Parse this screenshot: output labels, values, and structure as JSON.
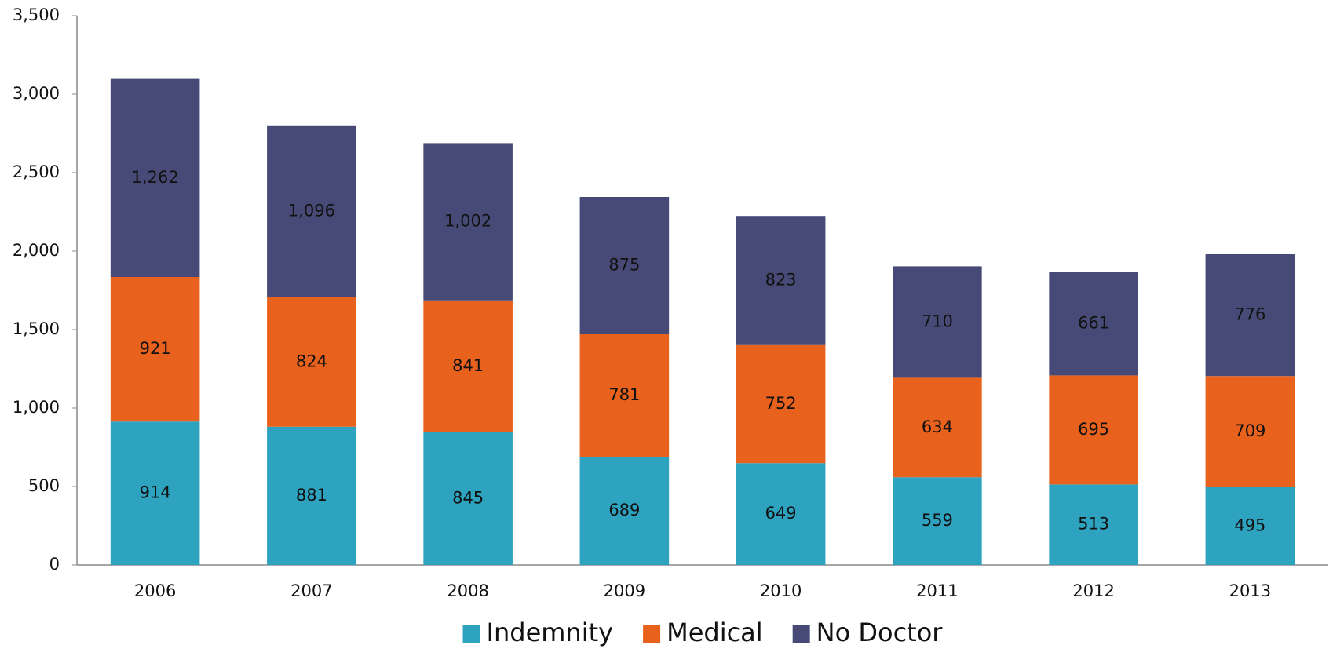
{
  "chart_data": {
    "type": "stacked_bar",
    "categories": [
      "2006",
      "2007",
      "2008",
      "2009",
      "2010",
      "2011",
      "2012",
      "2013"
    ],
    "series": [
      {
        "name": "Indemnity",
        "color": "#2ea3bf",
        "values": [
          914,
          881,
          845,
          689,
          649,
          559,
          513,
          495
        ]
      },
      {
        "name": "Medical",
        "color": "#e8621e",
        "values": [
          921,
          824,
          841,
          781,
          752,
          634,
          695,
          709
        ]
      },
      {
        "name": "No Doctor",
        "color": "#474a76",
        "values": [
          1262,
          1096,
          1002,
          875,
          823,
          710,
          661,
          776
        ],
        "value_labels": [
          "1,262",
          "1,096",
          "1,002",
          "875",
          "823",
          "710",
          "661",
          "776"
        ]
      }
    ],
    "ylim": [
      0,
      3500
    ],
    "yticks": [
      0,
      500,
      {
        "value": 1000,
        "label": "1,000"
      },
      {
        "value": 1500,
        "label": "1,500"
      },
      {
        "value": 2000,
        "label": "2,000"
      },
      {
        "value": 2500,
        "label": "2,500"
      },
      {
        "value": 3000,
        "label": "3,000"
      },
      {
        "value": 3500,
        "label": "3,500"
      }
    ],
    "grid": false,
    "legend": "bottom"
  }
}
